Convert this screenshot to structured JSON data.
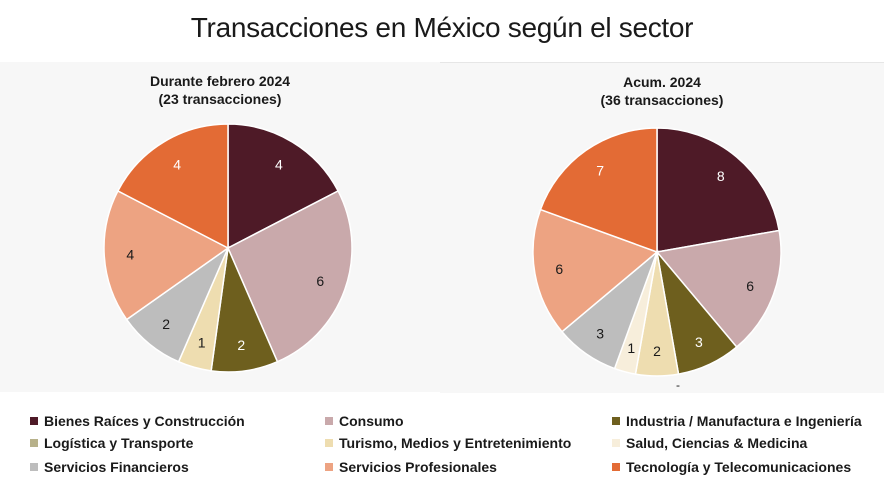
{
  "title": "Transacciones en México según el sector",
  "chart_data": [
    {
      "type": "pie",
      "title_line1": "Durante febrero 2024",
      "title_line2": "(23 transacciones)",
      "slices": [
        {
          "category": "Bienes Raíces y Construcción",
          "value": 4
        },
        {
          "category": "Consumo",
          "value": 6
        },
        {
          "category": "Industria / Manufactura e Ingeniería",
          "value": 2
        },
        {
          "category": "Turismo, Medios y Entretenimiento",
          "value": 1
        },
        {
          "category": "Servicios Financieros",
          "value": 2
        },
        {
          "category": "Servicios Profesionales",
          "value": 4
        },
        {
          "category": "Tecnología y Telecomunicaciones",
          "value": 4
        }
      ]
    },
    {
      "type": "pie",
      "title_line1": "Acum. 2024",
      "title_line2": "(36 transacciones)",
      "note": "-",
      "slices": [
        {
          "category": "Bienes Raíces y Construcción",
          "value": 8
        },
        {
          "category": "Consumo",
          "value": 6
        },
        {
          "category": "Industria / Manufactura e Ingeniería",
          "value": 3
        },
        {
          "category": "Turismo, Medios y Entretenimiento",
          "value": 2
        },
        {
          "category": "Salud, Ciencias & Medicina",
          "value": 1
        },
        {
          "category": "Servicios Financieros",
          "value": 3
        },
        {
          "category": "Servicios Profesionales",
          "value": 6
        },
        {
          "category": "Tecnología y Telecomunicaciones",
          "value": 7
        }
      ]
    }
  ],
  "legend": [
    {
      "label": "Bienes Raíces y Construcción",
      "color": "#4E1A27"
    },
    {
      "label": "Consumo",
      "color": "#C9A9AB"
    },
    {
      "label": "Industria / Manufactura e Ingeniería",
      "color": "#6E5F1E"
    },
    {
      "label": "Logística y Transporte",
      "color": "#B7B18A"
    },
    {
      "label": "Turismo, Medios y Entretenimiento",
      "color": "#EEDDB0"
    },
    {
      "label": "Salud, Ciencias & Medicina",
      "color": "#F7EEDB"
    },
    {
      "label": "Servicios Financieros",
      "color": "#BDBDBD"
    },
    {
      "label": "Servicios Profesionales",
      "color": "#EDA382"
    },
    {
      "label": "Tecnología y Telecomunicaciones",
      "color": "#E36B35"
    }
  ],
  "label_colors": {
    "Bienes Raíces y Construcción": "#ffffff",
    "Industria / Manufactura e Ingeniería": "#ffffff",
    "Tecnología y Telecomunicaciones": "#ffffff",
    "default": "#1a1a1a"
  }
}
